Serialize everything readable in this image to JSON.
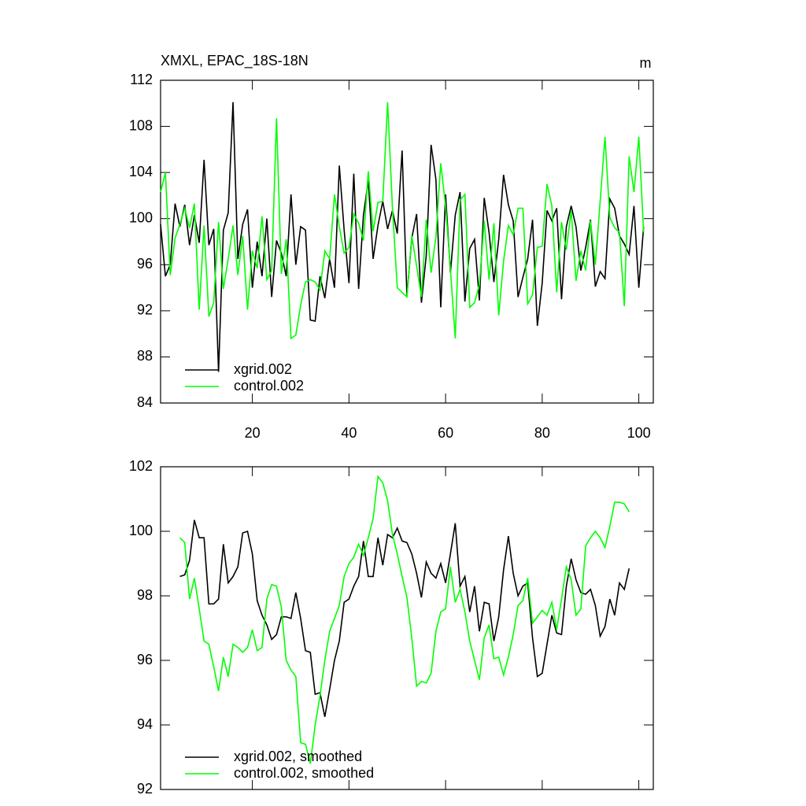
{
  "chart_data": [
    {
      "type": "line",
      "title": "XMXL, EPAC_18S-18N",
      "unit_label": "m",
      "x": [
        1,
        2,
        3,
        4,
        5,
        6,
        7,
        8,
        9,
        10,
        11,
        12,
        13,
        14,
        15,
        16,
        17,
        18,
        19,
        20,
        21,
        22,
        23,
        24,
        25,
        26,
        27,
        28,
        29,
        30,
        31,
        32,
        33,
        34,
        35,
        36,
        37,
        38,
        39,
        40,
        41,
        42,
        43,
        44,
        45,
        46,
        47,
        48,
        49,
        50,
        51,
        52,
        53,
        54,
        55,
        56,
        57,
        58,
        59,
        60,
        61,
        62,
        63,
        64,
        65,
        66,
        67,
        68,
        69,
        70,
        71,
        72,
        73,
        74,
        75,
        76,
        77,
        78,
        79,
        80,
        81,
        82,
        83,
        84,
        85,
        86,
        87,
        88,
        89,
        90,
        91,
        92,
        93,
        94,
        95,
        96,
        97,
        98,
        99,
        100,
        101
      ],
      "series": [
        {
          "name": "xgrid.002",
          "color": "#000000",
          "values": [
            99.5,
            95,
            96,
            101.3,
            99.3,
            101.2,
            97.7,
            100.3,
            97.9,
            105.1,
            97.7,
            99.1,
            86.7,
            99.0,
            100.5,
            110.1,
            96.5,
            99.5,
            100.8,
            94,
            98,
            95,
            100,
            93.2,
            98.1,
            97,
            95,
            102.1,
            96,
            99.3,
            99,
            91.2,
            91.1,
            95,
            93.1,
            96.5,
            94,
            104.6,
            99,
            94.4,
            103.9,
            93.9,
            100.3,
            103.3,
            96.5,
            99.4,
            101.5,
            99.1,
            100.7,
            98.7,
            105.9,
            93.3,
            98.3,
            100.4,
            92.7,
            96.8,
            106.4,
            103.4,
            92.3,
            102.1,
            95.3,
            100.3,
            102.3,
            92.8,
            97.4,
            98.2,
            92.9,
            101.8,
            98.8,
            94.5,
            98.2,
            103.8,
            101.2,
            99.8,
            93.2,
            94.9,
            96.5,
            99.9,
            90.7,
            94.4,
            100.7,
            99.8,
            100.9,
            93,
            99.3,
            101.1,
            99.3,
            95.5,
            97.5,
            99.9,
            94.1,
            95.4,
            94.8,
            101.7,
            100.9,
            98.5,
            97.8,
            96.9,
            101.1,
            94,
            99.3
          ]
        },
        {
          "name": "control.002",
          "color": "#00ff00",
          "values": [
            102.3,
            104,
            95.1,
            98.3,
            99.5,
            100.9,
            99.2,
            101.3,
            92.1,
            99.4,
            91.5,
            92.7,
            99.7,
            93.9,
            96.5,
            99.4,
            95.1,
            98.5,
            92.1,
            97.2,
            95.7,
            100.2,
            94.7,
            95.5,
            108.7,
            95.2,
            98.2,
            89.6,
            89.9,
            92.5,
            94.5,
            94.7,
            94.5,
            93.8,
            97.2,
            96.5,
            102.1,
            99.3,
            97,
            97.5,
            100.4,
            99.6,
            98.1,
            104.1,
            98.9,
            101.4,
            101.5,
            110.1,
            100.9,
            94,
            93.6,
            93.2,
            98.5,
            95.9,
            93.2,
            99.9,
            95.3,
            98.4,
            104.8,
            101.1,
            95.6,
            89.6,
            101.6,
            102.1,
            92.3,
            92.7,
            94.3,
            99.8,
            94.7,
            99.6,
            91.6,
            96.3,
            99.4,
            98.6,
            100.9,
            100.9,
            92.6,
            93.4,
            97.5,
            97.6,
            103,
            101.1,
            93.6,
            99.7,
            97.3,
            100.7,
            94.6,
            97.2,
            95.5,
            99.8,
            96.0,
            101.5,
            107.1,
            100.1,
            99.2,
            98.8,
            92.4,
            105.4,
            102.3,
            107.1,
            98.8
          ]
        }
      ],
      "xlim": [
        1,
        103
      ],
      "xticks": [
        20,
        40,
        60,
        80,
        100
      ],
      "ylim": [
        84,
        112
      ],
      "yticks": [
        84,
        88,
        92,
        96,
        100,
        104,
        108,
        112
      ]
    },
    {
      "type": "line",
      "x": [
        5,
        6,
        7,
        8,
        9,
        10,
        11,
        12,
        13,
        14,
        15,
        16,
        17,
        18,
        19,
        20,
        21,
        22,
        23,
        24,
        25,
        26,
        27,
        28,
        29,
        30,
        31,
        32,
        33,
        34,
        35,
        36,
        37,
        38,
        39,
        40,
        41,
        42,
        43,
        44,
        45,
        46,
        47,
        48,
        49,
        50,
        51,
        52,
        53,
        54,
        55,
        56,
        57,
        58,
        59,
        60,
        61,
        62,
        63,
        64,
        65,
        66,
        67,
        68,
        69,
        70,
        71,
        72,
        73,
        74,
        75,
        76,
        77,
        78,
        79,
        80,
        81,
        82,
        83,
        84,
        85,
        86,
        87,
        88,
        89,
        90,
        91,
        92,
        93,
        94,
        95,
        96,
        97,
        98
      ],
      "series": [
        {
          "name": "xgrid.002, smoothed",
          "color": "#000000",
          "values": [
            98.6,
            98.65,
            99.1,
            100.35,
            99.8,
            99.8,
            97.75,
            97.75,
            97.9,
            99.6,
            98.4,
            98.6,
            98.9,
            99.95,
            100,
            99.3,
            97.85,
            97.4,
            97.1,
            96.65,
            96.8,
            97.35,
            97.35,
            97.3,
            98.1,
            97.3,
            96.3,
            96.25,
            94.95,
            95.0,
            94.25,
            95.1,
            96.0,
            96.6,
            97.8,
            97.9,
            98.3,
            98.6,
            99.7,
            98.6,
            98.6,
            99.8,
            98.95,
            99.9,
            99.8,
            100.1,
            99.7,
            99.65,
            99.3,
            98.7,
            97.95,
            99.05,
            98.7,
            98.55,
            99.0,
            98.4,
            99.3,
            100.25,
            98.3,
            98.6,
            97.5,
            98.3,
            96.9,
            97.8,
            97.75,
            96.6,
            97.35,
            98.8,
            99.85,
            98.7,
            98.0,
            98.3,
            98.4,
            96.7,
            95.5,
            95.6,
            96.5,
            97.4,
            96.85,
            96.8,
            98.3,
            99.15,
            98.5,
            98.1,
            98.05,
            98.2,
            97.7,
            96.75,
            97.05,
            97.9,
            97.4,
            98.4,
            98.2,
            98.85
          ]
        },
        {
          "name": "control.002, smoothed",
          "color": "#00ff00",
          "values": [
            99.8,
            99.65,
            97.9,
            98.55,
            97.6,
            96.6,
            96.5,
            95.8,
            95.05,
            96.1,
            95.5,
            96.5,
            96.4,
            96.25,
            96.4,
            96.95,
            96.3,
            96.4,
            97.9,
            98.35,
            98.3,
            97.65,
            96.0,
            95.7,
            95.5,
            93.45,
            93.4,
            92.8,
            94.0,
            94.9,
            96.0,
            96.9,
            97.3,
            97.7,
            98.6,
            99.0,
            99.2,
            99.6,
            99.25,
            99.8,
            100.4,
            101.7,
            101.5,
            100.95,
            99.9,
            99.3,
            98.6,
            97.95,
            96.7,
            95.2,
            95.35,
            95.3,
            95.6,
            96.9,
            97.5,
            97.6,
            98.9,
            97.8,
            98.2,
            97.5,
            96.6,
            96.0,
            95.4,
            96.7,
            97.1,
            96.05,
            96.1,
            95.55,
            96.1,
            96.8,
            97.7,
            97.85,
            98.55,
            97.15,
            97.35,
            97.55,
            97.4,
            97.8,
            96.95,
            97.9,
            98.9,
            98.5,
            97.4,
            97.6,
            99.55,
            99.8,
            100.0,
            99.8,
            99.5,
            100.15,
            100.9,
            100.9,
            100.85,
            100.6
          ]
        }
      ],
      "xlim": [
        1,
        103
      ],
      "xticks": [
        20,
        40,
        60,
        80,
        100
      ],
      "ylim": [
        92,
        102
      ],
      "yticks": [
        92,
        94,
        96,
        98,
        100,
        102
      ]
    }
  ]
}
